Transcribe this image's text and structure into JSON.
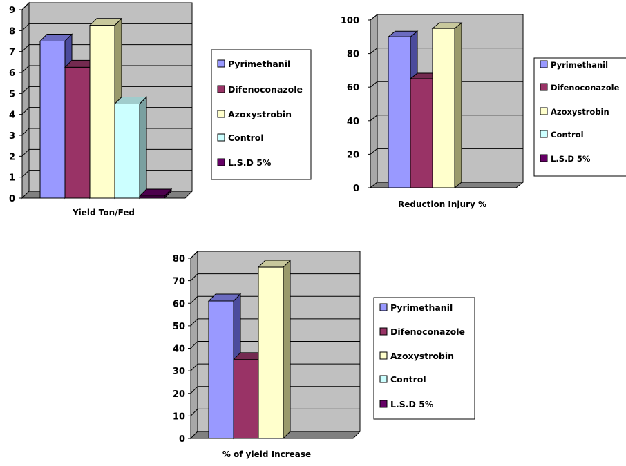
{
  "legend_entries": [
    "Pyrimethanil",
    "Difenoconazole",
    "Azoxystrobin",
    "Control",
    "L.S.D 5%"
  ],
  "colors": {
    "Pyrimethanil": {
      "front": "#9999ff",
      "side": "#4b4b9c",
      "top": "#6b6bc0"
    },
    "Difenoconazole": {
      "front": "#993366",
      "side": "#5a1f3d",
      "top": "#742a50"
    },
    "Azoxystrobin": {
      "front": "#ffffcc",
      "side": "#9a9a6c",
      "top": "#c8c89c"
    },
    "Control": {
      "front": "#ccffff",
      "side": "#7aa0a0",
      "top": "#a0cccc"
    },
    "L.S.D 5%": {
      "front": "#660066",
      "side": "#330033",
      "top": "#4d004d"
    },
    "plot_bg": "#c0c0c0",
    "floor": "#808080"
  },
  "chart_data": [
    {
      "type": "bar",
      "title": "",
      "xlabel": "Yield  Ton/Fed",
      "ylabel": "",
      "ylim": [
        0,
        9
      ],
      "yticks": [
        "0",
        "1",
        "2",
        "3",
        "4",
        "5",
        "6",
        "7",
        "8",
        "9"
      ],
      "grid": true,
      "legend_placement": "right",
      "series": [
        {
          "name": "Pyrimethanil",
          "value": 7.5
        },
        {
          "name": "Difenoconazole",
          "value": 6.25
        },
        {
          "name": "Azoxystrobin",
          "value": 8.25
        },
        {
          "name": "Control",
          "value": 4.5
        },
        {
          "name": "L.S.D 5%",
          "value": 0.1
        }
      ]
    },
    {
      "type": "bar",
      "title": "",
      "xlabel": "Reduction  Injury %",
      "ylabel": "",
      "ylim": [
        0,
        100
      ],
      "yticks": [
        "0",
        "20",
        "40",
        "60",
        "80",
        "100"
      ],
      "grid": true,
      "legend_placement": "right",
      "series": [
        {
          "name": "Pyrimethanil",
          "value": 90
        },
        {
          "name": "Difenoconazole",
          "value": 65
        },
        {
          "name": "Azoxystrobin",
          "value": 95
        },
        {
          "name": "Control",
          "value": 0
        },
        {
          "name": "L.S.D 5%",
          "value": 0
        }
      ]
    },
    {
      "type": "bar",
      "title": "",
      "xlabel": "%  of yield Increase",
      "ylabel": "",
      "ylim": [
        0,
        80
      ],
      "yticks": [
        "0",
        "10",
        "20",
        "30",
        "40",
        "50",
        "60",
        "70",
        "80"
      ],
      "grid": true,
      "legend_placement": "right",
      "series": [
        {
          "name": "Pyrimethanil",
          "value": 61
        },
        {
          "name": "Difenoconazole",
          "value": 35
        },
        {
          "name": "Azoxystrobin",
          "value": 76
        },
        {
          "name": "Control",
          "value": 0
        },
        {
          "name": "L.S.D 5%",
          "value": 0
        }
      ]
    }
  ]
}
